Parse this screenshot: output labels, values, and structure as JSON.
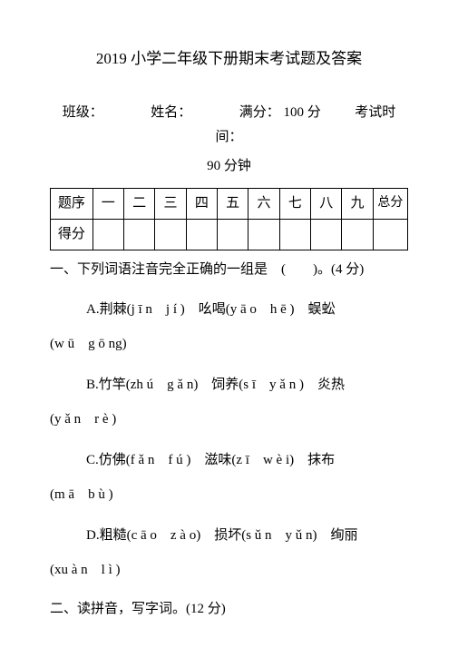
{
  "title": "2019 小学二年级下册期末考试题及答案",
  "info": {
    "class_label": "班级：",
    "name_label": "姓名：",
    "full_score_label": "满分：",
    "full_score_value": "100 分",
    "exam_time_label": "考试时间：",
    "exam_time_value": "90 分钟"
  },
  "table": {
    "row1_label": "题序",
    "numbers": [
      "一",
      "二",
      "三",
      "四",
      "五",
      "六",
      "七",
      "八",
      "九"
    ],
    "total_label": "总分",
    "row2_label": "得分"
  },
  "q1": {
    "header": "一、下列词语注音完全正确的一组是　(　　)。(4 分)",
    "optA_line1": "A.荆棘(j ī n　j í )　吆喝(y ā o　h ē )　蜈蚣",
    "optA_line2": "(w ū　g ō ng)",
    "optB_line1": "B.竹竿(zh ú　g ǎ n)　饲养(s ī　y ǎ n )　炎热",
    "optB_line2": "(y ǎ n　r è )",
    "optC_line1": "C.仿佛(f ǎ n　f ú )　滋味(z ī　w è i)　抹布",
    "optC_line2": "(m ā　b ù )",
    "optD_line1": "D.粗糙(c ā o　z à o)　损坏(s ǔ n　y ǔ n)　绚丽",
    "optD_line2": "(xu à n　l ì )"
  },
  "q2": {
    "header": "二、读拼音，写字词。(12 分)"
  }
}
